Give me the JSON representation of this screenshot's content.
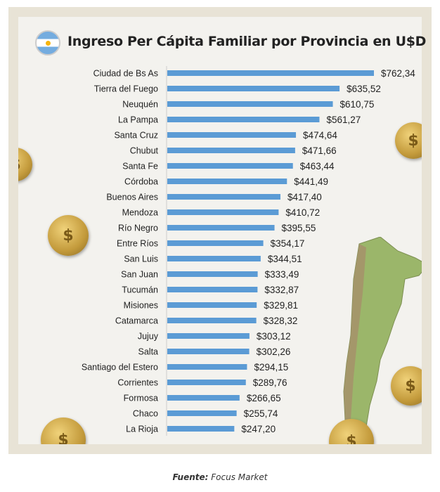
{
  "title": "Ingreso Per Cápita Familiar por Provincia en U$D",
  "source_label": "Fuente:",
  "source_value": "Focus Market",
  "colors": {
    "bar": "#5b9bd5",
    "background": "#f3f2ee",
    "frame": "#e8e3d6"
  },
  "icons": [
    "argentina-flag-icon",
    "coin-icon",
    "argentina-map"
  ],
  "chart_data": {
    "type": "bar",
    "orientation": "horizontal",
    "title": "Ingreso Per Cápita Familiar por Provincia en U$D",
    "categories": [
      "Ciudad de Bs As",
      "Tierra del Fuego",
      "Neuquén",
      "La Pampa",
      "Santa Cruz",
      "Chubut",
      "Santa Fe",
      "Córdoba",
      "Buenos Aires",
      "Mendoza",
      "Río Negro",
      "Entre Ríos",
      "San Luis",
      "San Juan",
      "Tucumán",
      "Misiones",
      "Catamarca",
      "Jujuy",
      "Salta",
      "Santiago del Estero",
      "Corrientes",
      "Formosa",
      "Chaco",
      "La Rioja"
    ],
    "values": [
      762.34,
      635.52,
      610.75,
      561.27,
      474.64,
      471.66,
      463.44,
      441.49,
      417.4,
      410.72,
      395.55,
      354.17,
      344.51,
      333.49,
      332.87,
      329.81,
      328.32,
      303.12,
      302.26,
      294.15,
      289.76,
      266.65,
      255.74,
      247.2
    ],
    "value_labels": [
      "$762,34",
      "$635,52",
      "$610,75",
      "$561,27",
      "$474,64",
      "$471,66",
      "$463,44",
      "$441,49",
      "$417,40",
      "$410,72",
      "$395,55",
      "$354,17",
      "$344,51",
      "$333,49",
      "$332,87",
      "$329,81",
      "$328,32",
      "$303,12",
      "$302,26",
      "$294,15",
      "$289,76",
      "$266,65",
      "$255,74",
      "$247,20"
    ],
    "xlim": [
      0,
      762.34
    ],
    "grid": false,
    "legend": "none"
  }
}
